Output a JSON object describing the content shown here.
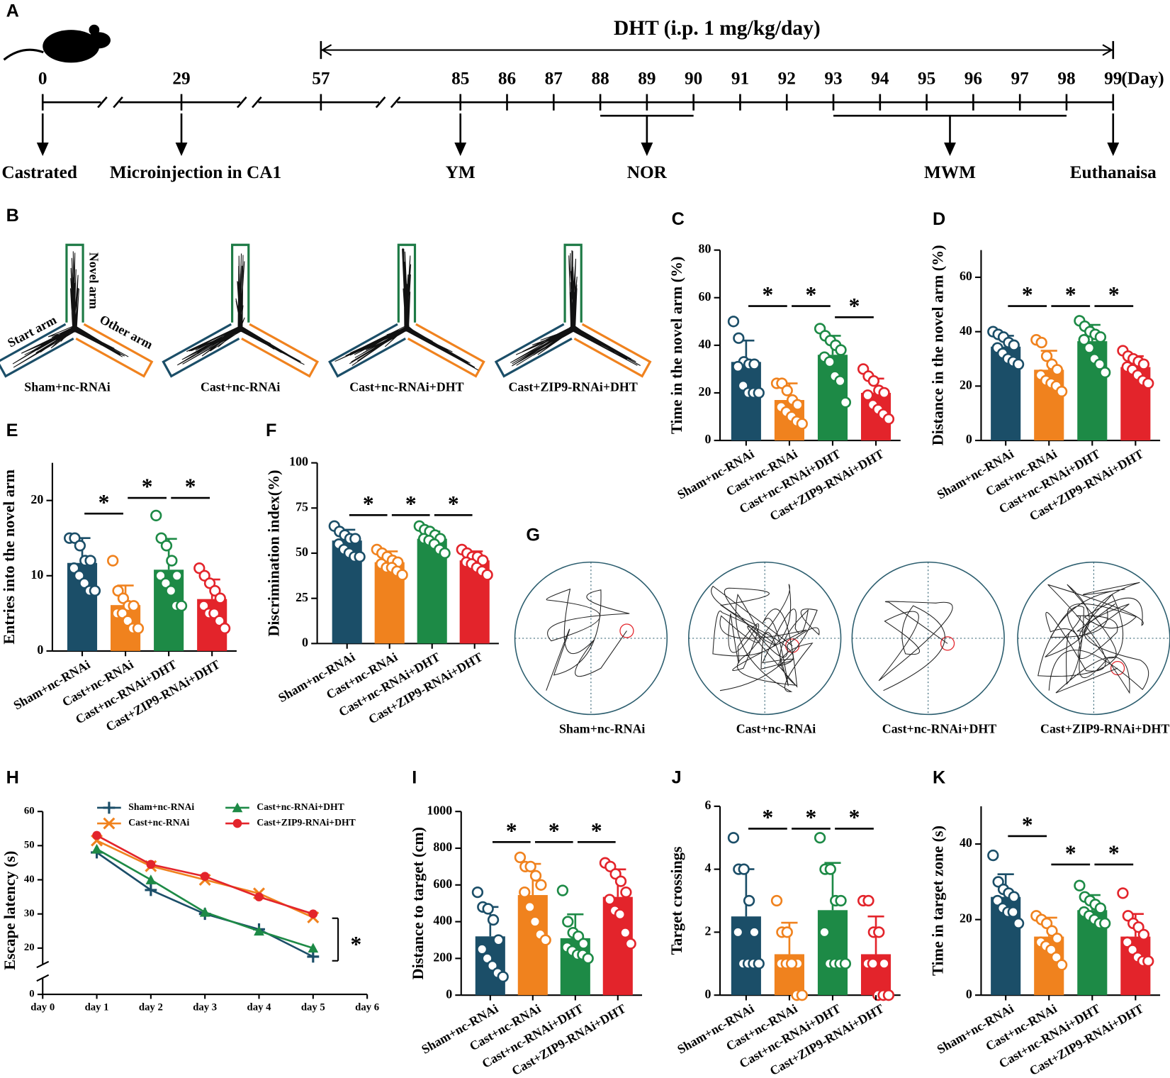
{
  "timeline": {
    "panel": "A",
    "treatment": "DHT (i.p. 1 mg/kg/day)",
    "treatment_span": [
      57,
      99
    ],
    "days": [
      0,
      29,
      57,
      85,
      86,
      87,
      88,
      89,
      90,
      91,
      92,
      93,
      94,
      95,
      96,
      97,
      98,
      99
    ],
    "unit": "(Day)",
    "events": [
      {
        "day": 0,
        "label": "Castrated"
      },
      {
        "day": 29,
        "label": "Microinjection in CA1"
      },
      {
        "day": 85,
        "label": "YM"
      },
      {
        "span": [
          88,
          90
        ],
        "label": "NOR"
      },
      {
        "span": [
          93,
          98
        ],
        "label": "MWM"
      },
      {
        "day": 99,
        "label": "Euthanaisa"
      }
    ]
  },
  "ymaze": {
    "panel": "B",
    "arm_labels": [
      "Novel arm",
      "Start arm",
      "Other arm"
    ],
    "groups": [
      "Sham+nc-RNAi",
      "Cast+nc-RNAi",
      "Cast+nc-RNAi+DHT",
      "Cast+ZIP9-RNAi+DHT"
    ]
  },
  "mwm": {
    "panel": "G",
    "groups": [
      "Sham+nc-RNAi",
      "Cast+nc-RNAi",
      "Cast+nc-RNAi+DHT",
      "Cast+ZIP9-RNAi+DHT"
    ]
  },
  "chart_data": [
    {
      "type": "bar",
      "panel": "C",
      "ylabel": "Time in the novel arm (%)",
      "categories": [
        "Sham+nc-RNAi",
        "Cast+nc-RNAi",
        "Cast+nc-RNAi+DHT",
        "Cast+ZIP9-RNAi+DHT"
      ],
      "colors": [
        "#1b4e68",
        "#f0821e",
        "#1d8a46",
        "#e3242b"
      ],
      "values": [
        33,
        17,
        36,
        20
      ],
      "errors": [
        9,
        7,
        8,
        6
      ],
      "points": [
        [
          50,
          43,
          33,
          32,
          32,
          31,
          23,
          20,
          20,
          20
        ],
        [
          24,
          24,
          21,
          17,
          15,
          14,
          12,
          10,
          8,
          7
        ],
        [
          47,
          44,
          42,
          40,
          38,
          35,
          33,
          27,
          25,
          16
        ],
        [
          30,
          27,
          25,
          21,
          20,
          19,
          15,
          13,
          11,
          9
        ]
      ],
      "ylim": [
        0,
        80
      ],
      "yticks": [
        0,
        20,
        40,
        60,
        80
      ],
      "significance": {
        "label": "*",
        "pairs": [
          [
            0,
            1
          ],
          [
            1,
            2
          ],
          [
            2,
            3
          ]
        ]
      }
    },
    {
      "type": "bar",
      "panel": "D",
      "ylabel": "Distance in the novel arm (%)",
      "categories": [
        "Sham+nc-RNAi",
        "Cast+nc-RNAi",
        "Cast+nc-RNAi+DHT",
        "Cast+ZIP9-RNAi+DHT"
      ],
      "colors": [
        "#1b4e68",
        "#f0821e",
        "#1d8a46",
        "#e3242b"
      ],
      "values": [
        34.5,
        26,
        36.5,
        27
      ],
      "errors": [
        4,
        7,
        6,
        4
      ],
      "points": [
        [
          40,
          39,
          38,
          36,
          35,
          34,
          32,
          30,
          29,
          28
        ],
        [
          37,
          36,
          31,
          28,
          26,
          24,
          22,
          21,
          20,
          18
        ],
        [
          44,
          42,
          40,
          39,
          38,
          37,
          34,
          30,
          28,
          25
        ],
        [
          33,
          31,
          30,
          29,
          28,
          27,
          26,
          24,
          22,
          21
        ]
      ],
      "ylim": [
        0,
        70
      ],
      "yticks": [
        0,
        20,
        40,
        60
      ],
      "significance": {
        "label": "*",
        "pairs": [
          [
            0,
            1
          ],
          [
            1,
            2
          ],
          [
            2,
            3
          ]
        ]
      }
    },
    {
      "type": "bar",
      "panel": "E",
      "ylabel": "Entries into the novel arm",
      "categories": [
        "Sham+nc-RNAi",
        "Cast+nc-RNAi",
        "Cast+nc-RNAi+DHT",
        "Cast+ZIP9-RNAi+DHT"
      ],
      "colors": [
        "#1b4e68",
        "#f0821e",
        "#1d8a46",
        "#e3242b"
      ],
      "values": [
        11.7,
        6.1,
        10.8,
        6.9
      ],
      "errors": [
        3.3,
        2.6,
        4.1,
        2.6
      ],
      "points": [
        [
          15,
          15,
          14,
          12,
          12,
          11,
          10,
          9,
          8,
          8
        ],
        [
          12,
          8,
          7,
          6,
          6,
          5,
          5,
          4,
          3,
          3
        ],
        [
          18,
          15,
          14,
          12,
          10,
          10,
          9,
          8,
          6,
          6
        ],
        [
          11,
          10,
          9,
          8,
          7,
          6,
          5,
          5,
          4,
          3
        ]
      ],
      "ylim": [
        0,
        25
      ],
      "yticks": [
        0,
        10,
        20
      ],
      "significance": {
        "label": "*",
        "pairs": [
          [
            0,
            1
          ],
          [
            1,
            2
          ],
          [
            2,
            3
          ]
        ]
      }
    },
    {
      "type": "bar",
      "panel": "F",
      "ylabel": "Discrimination index(%)",
      "categories": [
        "Sham+nc-RNAi",
        "Cast+nc-RNAi",
        "Cast+nc-RNAi+DHT",
        "Cast+ZIP9-RNAi+DHT"
      ],
      "colors": [
        "#1b4e68",
        "#f0821e",
        "#1d8a46",
        "#e3242b"
      ],
      "values": [
        57,
        45,
        58,
        46
      ],
      "errors": [
        6,
        6,
        4,
        5
      ],
      "points": [
        [
          65,
          62,
          60,
          58,
          58,
          55,
          52,
          50,
          48,
          48
        ],
        [
          52,
          50,
          48,
          46,
          45,
          44,
          42,
          42,
          40,
          38
        ],
        [
          65,
          63,
          62,
          60,
          58,
          58,
          57,
          55,
          52,
          50
        ],
        [
          52,
          50,
          48,
          48,
          46,
          45,
          44,
          42,
          40,
          38
        ]
      ],
      "ylim": [
        0,
        100
      ],
      "yticks": [
        0,
        25,
        50,
        75,
        100
      ],
      "significance": {
        "label": "*",
        "pairs": [
          [
            0,
            1
          ],
          [
            1,
            2
          ],
          [
            2,
            3
          ]
        ]
      }
    },
    {
      "type": "line",
      "panel": "H",
      "ylabel": "Escape latency (s)",
      "x": [
        1,
        2,
        3,
        4,
        5
      ],
      "xlim": [
        0,
        6
      ],
      "xticks": [
        {
          "value": 0,
          "label": "day 0"
        },
        {
          "value": 1,
          "label": "day 1"
        },
        {
          "value": 2,
          "label": "day 2"
        },
        {
          "value": 3,
          "label": "day 3"
        },
        {
          "value": 4,
          "label": "day 4"
        },
        {
          "value": 5,
          "label": "day 5"
        },
        {
          "value": 6,
          "label": "day 6"
        }
      ],
      "ylim": [
        0,
        60
      ],
      "yticks": [
        0,
        20,
        30,
        40,
        50,
        60
      ],
      "axis_break": true,
      "series": [
        {
          "name": "Sham+nc-RNAi",
          "color": "#1b4e68",
          "marker": "plus",
          "values": [
            48,
            37,
            30,
            25.5,
            17.5
          ]
        },
        {
          "name": "Cast+nc-RNAi",
          "color": "#f0821e",
          "marker": "x",
          "values": [
            51.5,
            44,
            40,
            36,
            29
          ]
        },
        {
          "name": "Cast+nc-RNAi+DHT",
          "color": "#1d8a46",
          "marker": "triangle",
          "values": [
            49,
            40,
            30.5,
            25,
            20
          ]
        },
        {
          "name": "Cast+ZIP9-RNAi+DHT",
          "color": "#e3242b",
          "marker": "circle",
          "values": [
            53,
            44.5,
            41,
            35,
            30
          ]
        }
      ],
      "significance": {
        "label": "*"
      }
    },
    {
      "type": "bar",
      "panel": "I",
      "ylabel": "Distance to target (cm)",
      "categories": [
        "Sham+nc-RNAi",
        "Cast+nc-RNAi",
        "Cast+nc-RNAi+DHT",
        "Cast+ZIP9-RNAi+DHT"
      ],
      "colors": [
        "#1b4e68",
        "#f0821e",
        "#1d8a46",
        "#e3242b"
      ],
      "values": [
        320,
        545,
        310,
        535
      ],
      "errors": [
        160,
        170,
        130,
        150
      ],
      "points": [
        [
          560,
          480,
          470,
          410,
          300,
          250,
          200,
          160,
          120,
          100
        ],
        [
          750,
          700,
          700,
          650,
          600,
          560,
          480,
          400,
          330,
          300
        ],
        [
          570,
          400,
          340,
          320,
          280,
          260,
          240,
          220,
          220,
          200
        ],
        [
          720,
          700,
          660,
          620,
          560,
          520,
          460,
          440,
          340,
          280
        ]
      ],
      "ylim": [
        0,
        1000
      ],
      "yticks": [
        0,
        200,
        400,
        600,
        800,
        1000
      ],
      "significance": {
        "label": "*",
        "pairs": [
          [
            0,
            1
          ],
          [
            1,
            2
          ],
          [
            2,
            3
          ]
        ]
      }
    },
    {
      "type": "bar",
      "panel": "J",
      "ylabel": "Target crossings",
      "categories": [
        "Sham+nc-RNAi",
        "Cast+nc-RNAi",
        "Cast+nc-RNAi+DHT",
        "Cast+ZIP9-RNAi+DHT"
      ],
      "colors": [
        "#1b4e68",
        "#f0821e",
        "#1d8a46",
        "#e3242b"
      ],
      "values": [
        2.5,
        1.3,
        2.7,
        1.3
      ],
      "errors": [
        1.5,
        1.0,
        1.5,
        1.2
      ],
      "points": [
        [
          5,
          4,
          4,
          3,
          2,
          2,
          1,
          1,
          1,
          1
        ],
        [
          3,
          2,
          2,
          1,
          1,
          1,
          1,
          1,
          0,
          0
        ],
        [
          5,
          4,
          4,
          3,
          3,
          2,
          1,
          1,
          1,
          1
        ],
        [
          3,
          3,
          2,
          2,
          1,
          1,
          1,
          0,
          0,
          0
        ]
      ],
      "ylim": [
        0,
        6
      ],
      "yticks": [
        0,
        2,
        4,
        6
      ],
      "significance": {
        "label": "*",
        "pairs": [
          [
            0,
            1
          ],
          [
            1,
            2
          ],
          [
            2,
            3
          ]
        ]
      }
    },
    {
      "type": "bar",
      "panel": "K",
      "ylabel": "Time in target zone (s)",
      "categories": [
        "Sham+nc-RNAi",
        "Cast+nc-RNAi",
        "Cast+nc-RNAi+DHT",
        "Cast+ZIP9-RNAi+DHT"
      ],
      "colors": [
        "#1b4e68",
        "#f0821e",
        "#1d8a46",
        "#e3242b"
      ],
      "values": [
        26,
        15.5,
        22.5,
        15.5
      ],
      "errors": [
        6,
        5,
        4,
        6
      ],
      "points": [
        [
          37,
          30,
          28,
          27,
          26,
          25,
          23,
          22,
          22,
          19
        ],
        [
          21,
          20,
          19,
          17,
          15,
          14,
          13,
          12,
          10,
          8
        ],
        [
          29,
          26,
          25,
          24,
          23,
          22,
          21,
          20,
          19,
          19
        ],
        [
          27,
          21,
          19,
          18,
          16,
          14,
          12,
          10,
          9,
          9
        ]
      ],
      "ylim": [
        0,
        50
      ],
      "yticks": [
        0,
        20,
        40
      ],
      "significance": {
        "label": "*",
        "pairs": [
          [
            0,
            1
          ],
          [
            1,
            2
          ],
          [
            2,
            3
          ]
        ]
      }
    }
  ]
}
